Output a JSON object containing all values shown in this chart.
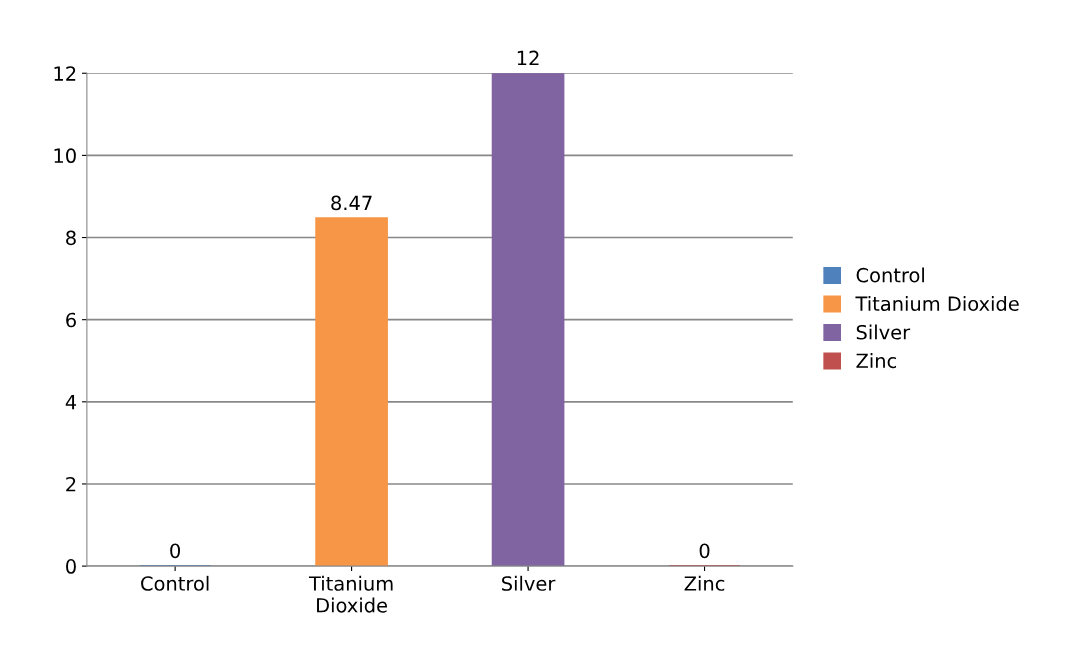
{
  "chart_data": {
    "type": "bar",
    "categories": [
      "Control",
      "Titanium\nDioxide",
      "Silver",
      "Zinc"
    ],
    "series": [
      {
        "name": "Control",
        "color": "#4f81bd",
        "values": [
          0,
          null,
          null,
          null
        ]
      },
      {
        "name": "Titanium Dioxide",
        "color": "#f79646",
        "values": [
          null,
          8.47,
          null,
          null
        ]
      },
      {
        "name": "Silver",
        "color": "#8064a2",
        "values": [
          null,
          null,
          12,
          null
        ]
      },
      {
        "name": "Zinc",
        "color": "#c0504d",
        "values": [
          null,
          null,
          null,
          0
        ]
      }
    ],
    "ylim": [
      0,
      12
    ],
    "yticks": [
      0,
      2,
      4,
      6,
      8,
      10,
      12
    ],
    "grid": "y",
    "legend": "right",
    "data_labels": true
  }
}
